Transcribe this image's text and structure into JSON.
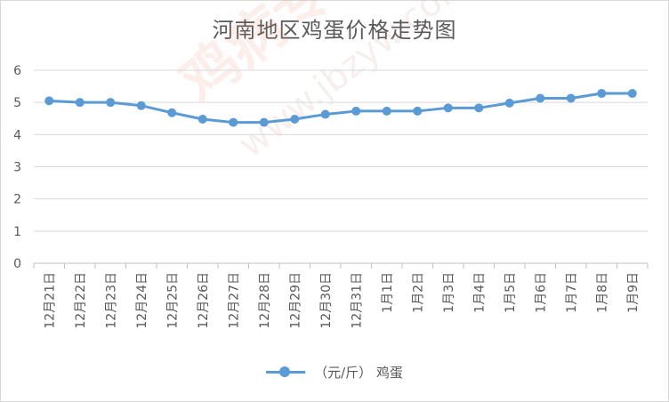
{
  "chart_data": {
    "type": "line",
    "title": "河南地区鸡蛋价格走势图",
    "categories": [
      "12月21日",
      "12月22日",
      "12月23日",
      "12月24日",
      "12月25日",
      "12月26日",
      "12月27日",
      "12月28日",
      "12月29日",
      "12月30日",
      "12月31日",
      "1月1日",
      "1月2日",
      "1月3日",
      "1月4日",
      "1月5日",
      "1月6日",
      "1月7日",
      "1月8日",
      "1月9日"
    ],
    "series": [
      {
        "name": "（元/斤） 鸡蛋",
        "color": "#5b9bd5",
        "values": [
          5.05,
          5.0,
          5.0,
          4.9,
          4.68,
          4.48,
          4.38,
          4.38,
          4.48,
          4.63,
          4.73,
          4.73,
          4.73,
          4.83,
          4.83,
          4.98,
          5.13,
          5.13,
          5.28,
          5.28
        ]
      }
    ],
    "ylim": [
      0,
      6
    ],
    "yticks": [
      0,
      1,
      2,
      3,
      4,
      5,
      6
    ],
    "grid": true,
    "legend": "bottom"
  },
  "watermark": {
    "brand": "鸡病专业网",
    "url": "www.jbzyw.com"
  }
}
